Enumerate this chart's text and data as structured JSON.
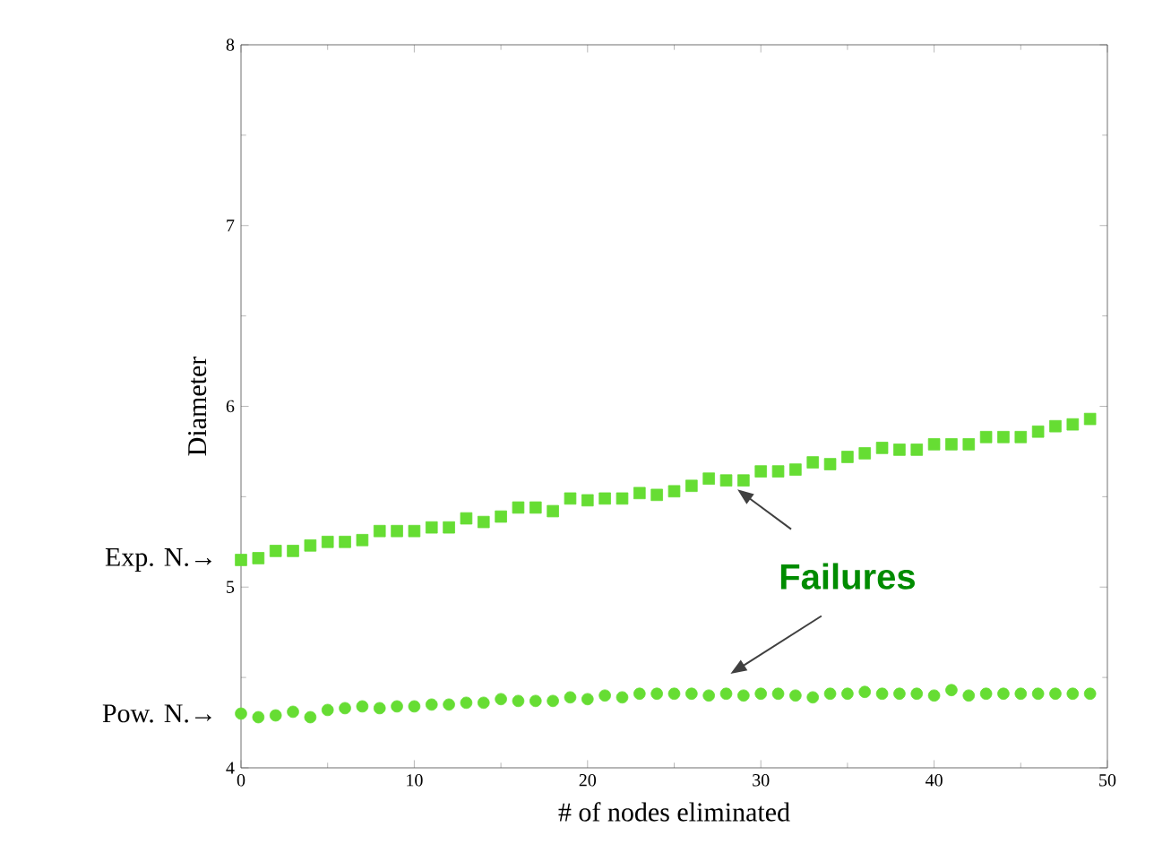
{
  "chart_data": {
    "type": "scatter",
    "xlabel": "# of nodes eliminated",
    "ylabel": "Diameter",
    "xlim": [
      0,
      50
    ],
    "ylim": [
      4,
      8
    ],
    "xticks": [
      0,
      10,
      20,
      30,
      40,
      50
    ],
    "yticks": [
      4,
      5,
      6,
      7,
      8
    ],
    "grid": false,
    "x": [
      0,
      1,
      2,
      3,
      4,
      5,
      6,
      7,
      8,
      9,
      10,
      11,
      12,
      13,
      14,
      15,
      16,
      17,
      18,
      19,
      20,
      21,
      22,
      23,
      24,
      25,
      26,
      27,
      28,
      29,
      30,
      31,
      32,
      33,
      34,
      35,
      36,
      37,
      38,
      39,
      40,
      41,
      42,
      43,
      44,
      45,
      46,
      47,
      48,
      49
    ],
    "series": [
      {
        "color": "#66dd33",
        "marker": "square",
        "values": [
          5.15,
          5.16,
          5.2,
          5.2,
          5.23,
          5.25,
          5.25,
          5.26,
          5.31,
          5.31,
          5.31,
          5.33,
          5.33,
          5.38,
          5.36,
          5.39,
          5.44,
          5.44,
          5.42,
          5.49,
          5.48,
          5.49,
          5.49,
          5.52,
          5.51,
          5.53,
          5.56,
          5.6,
          5.59,
          5.59,
          5.64,
          5.64,
          5.65,
          5.69,
          5.68,
          5.72,
          5.74,
          5.77,
          5.76,
          5.76,
          5.79,
          5.79,
          5.79,
          5.83,
          5.83,
          5.83,
          5.86,
          5.89,
          5.9,
          5.93
        ]
      },
      {
        "color": "#66dd33",
        "marker": "circle",
        "values": [
          4.3,
          4.28,
          4.29,
          4.31,
          4.28,
          4.32,
          4.33,
          4.34,
          4.33,
          4.34,
          4.34,
          4.35,
          4.35,
          4.36,
          4.36,
          4.38,
          4.37,
          4.37,
          4.37,
          4.39,
          4.38,
          4.4,
          4.39,
          4.41,
          4.41,
          4.41,
          4.41,
          4.4,
          4.41,
          4.4,
          4.41,
          4.41,
          4.4,
          4.39,
          4.41,
          4.41,
          4.42,
          4.41,
          4.41,
          4.41,
          4.4,
          4.43,
          4.4,
          4.41,
          4.41,
          4.41,
          4.41,
          4.41,
          4.41,
          4.41
        ]
      }
    ],
    "annotations": [
      {
        "text": "Exp. N.→",
        "x": 0,
        "y": 5.15
      },
      {
        "text": "Pow. N.→",
        "x": 0,
        "y": 4.3
      },
      "Failures"
    ]
  }
}
